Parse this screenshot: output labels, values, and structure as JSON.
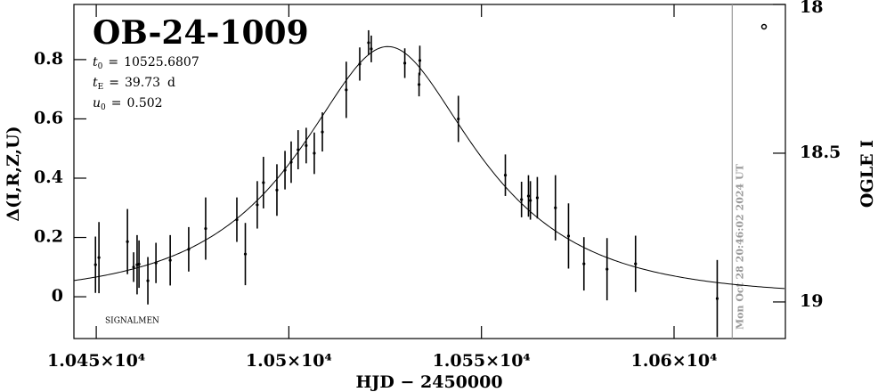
{
  "chart_data": {
    "type": "lightcurve",
    "title": "OB-24-1009",
    "signature": "SIGNALMEN",
    "xlabel": "HJD − 2450000",
    "ylabel": "Δ(I,R,Z,U)",
    "y2label": "OGLE I",
    "params": [
      {
        "symbol": "t",
        "subscript": "0",
        "equals": "=",
        "value": 10525.6807
      },
      {
        "symbol": "t",
        "subscript": "E",
        "equals": "=",
        "value": 39.73,
        "unit": "d"
      },
      {
        "symbol": "u",
        "subscript": "0",
        "equals": "=",
        "value": 0.502
      }
    ],
    "xlim": [
      10444.2,
      10628.9
    ],
    "xticks": [
      {
        "value": 10450,
        "label": "1.045×10⁴"
      },
      {
        "value": 10500,
        "label": "1.05×10⁴"
      },
      {
        "value": 10550,
        "label": "1.055×10⁴"
      },
      {
        "value": 10600,
        "label": "1.06×10⁴"
      }
    ],
    "ylim": [
      -0.141,
      0.986
    ],
    "yticks": [
      0,
      0.2,
      0.4,
      0.6,
      0.8
    ],
    "y2lim": [
      19.123,
      18
    ],
    "y2ticks": [
      18,
      18.5,
      19
    ],
    "now_line": {
      "x": 10615.1,
      "label": "Mon Oct 28 20:46:02 2024 UT",
      "color": "#999999"
    },
    "series": [
      {
        "color": "#000000",
        "x": [
          10449.8,
          10450.7,
          10458.1,
          10459.7,
          10460.6,
          10461.1,
          10463.4,
          10465.5,
          10469.2,
          10474.0,
          10478.4,
          10486.5,
          10488.7,
          10491.8,
          10493.4,
          10496.9,
          10499.0,
          10500.6,
          10502.4,
          10504.5,
          10506.6,
          10508.7,
          10514.9,
          10518.4,
          10520.7,
          10521.4,
          10530.1,
          10534.0,
          10533.8,
          10544.0,
          10556.2,
          10560.4,
          10562.2,
          10562.7,
          10564.5,
          10569.2,
          10572.6,
          10576.6,
          10582.6,
          10590.0,
          10611.2
        ],
        "values": [
          0.108,
          0.132,
          0.186,
          0.1,
          0.108,
          0.11,
          0.054,
          0.114,
          0.123,
          0.16,
          0.23,
          0.26,
          0.144,
          0.31,
          0.385,
          0.36,
          0.427,
          0.454,
          0.496,
          0.51,
          0.484,
          0.556,
          0.698,
          0.785,
          0.857,
          0.836,
          0.788,
          0.797,
          0.716,
          0.6,
          0.41,
          0.328,
          0.34,
          0.325,
          0.334,
          0.3,
          0.205,
          0.111,
          0.093,
          0.111,
          -0.006
        ],
        "errors": [
          0.095,
          0.12,
          0.11,
          0.05,
          0.1,
          0.08,
          0.08,
          0.068,
          0.085,
          0.075,
          0.105,
          0.075,
          0.105,
          0.08,
          0.087,
          0.087,
          0.065,
          0.07,
          0.066,
          0.06,
          0.07,
          0.066,
          0.095,
          0.056,
          0.042,
          0.045,
          0.05,
          0.05,
          0.04,
          0.078,
          0.07,
          0.06,
          0.07,
          0.065,
          0.07,
          0.11,
          0.11,
          0.09,
          0.105,
          0.095,
          0.13
        ]
      }
    ]
  }
}
